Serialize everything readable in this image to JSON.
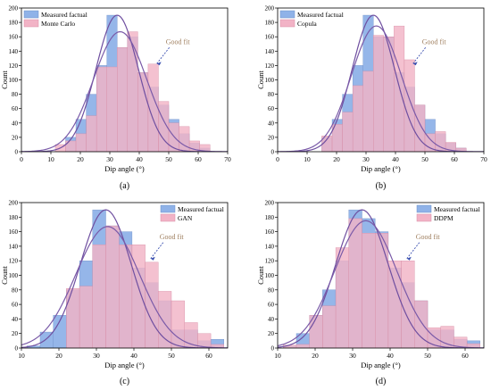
{
  "chart_data": [
    {
      "type": "bar",
      "panel_label": "(a)",
      "xlabel": "Dip angle (°)",
      "ylabel": "Count",
      "xlim": [
        0,
        70
      ],
      "ylim": [
        0,
        200
      ],
      "xticks": [
        0,
        10,
        20,
        30,
        40,
        50,
        60,
        70
      ],
      "yticks": [
        0,
        20,
        40,
        60,
        80,
        100,
        120,
        140,
        160,
        180,
        200
      ],
      "bin_width": 3.5,
      "legend": "top-left",
      "annotation": "Good fit",
      "series": [
        {
          "name": "Measured factual",
          "color": "#8fb2e8",
          "bins": [
            [
              15,
              20
            ],
            [
              18.5,
              45
            ],
            [
              22,
              80
            ],
            [
              25.5,
              120
            ],
            [
              29,
              190
            ],
            [
              32.5,
              145
            ],
            [
              36,
              160
            ],
            [
              39.5,
              110
            ],
            [
              43,
              90
            ],
            [
              46.5,
              65
            ],
            [
              50,
              45
            ],
            [
              53.5,
              25
            ],
            [
              57,
              12
            ],
            [
              60.5,
              5
            ]
          ]
        },
        {
          "name": "Monte Carlo",
          "color": "#f2b3c6",
          "bins": [
            [
              11.5,
              10
            ],
            [
              15,
              15
            ],
            [
              18.5,
              25
            ],
            [
              22,
              50
            ],
            [
              25.5,
              118
            ],
            [
              29,
              118
            ],
            [
              32.5,
              145
            ],
            [
              36,
              167
            ],
            [
              39.5,
              110
            ],
            [
              43,
              122
            ],
            [
              46.5,
              70
            ],
            [
              50,
              40
            ],
            [
              53.5,
              35
            ],
            [
              57,
              15
            ],
            [
              60.5,
              10
            ]
          ]
        }
      ],
      "curves": [
        {
          "peak_x": 32.5,
          "peak_y": 190,
          "sigma": 7.2,
          "color": "#6f4fa0"
        },
        {
          "peak_x": 33.5,
          "peak_y": 167,
          "sigma": 9,
          "color": "#7a5aa8"
        }
      ]
    },
    {
      "type": "bar",
      "panel_label": "(b)",
      "xlabel": "Dip angle (°)",
      "ylabel": "Count",
      "xlim": [
        0,
        70
      ],
      "ylim": [
        0,
        200
      ],
      "xticks": [
        0,
        10,
        20,
        30,
        40,
        50,
        60,
        70
      ],
      "yticks": [
        0,
        20,
        40,
        60,
        80,
        100,
        120,
        140,
        160,
        180,
        200
      ],
      "bin_width": 3.5,
      "legend": "top-left",
      "annotation": "Good fit",
      "series": [
        {
          "name": "Measured factual",
          "color": "#8fb2e8",
          "bins": [
            [
              15,
              20
            ],
            [
              18.5,
              45
            ],
            [
              22,
              80
            ],
            [
              25.5,
              120
            ],
            [
              29,
              190
            ],
            [
              32.5,
              160
            ],
            [
              36,
              160
            ],
            [
              39.5,
              110
            ],
            [
              43,
              90
            ],
            [
              46.5,
              65
            ],
            [
              50,
              45
            ],
            [
              53.5,
              25
            ],
            [
              57,
              12
            ],
            [
              60.5,
              5
            ]
          ]
        },
        {
          "name": "Copula",
          "color": "#f2b3c6",
          "bins": [
            [
              15,
              22
            ],
            [
              18.5,
              38
            ],
            [
              22,
              55
            ],
            [
              25.5,
              92
            ],
            [
              29,
              112
            ],
            [
              32.5,
              162
            ],
            [
              36,
              160
            ],
            [
              39.5,
              175
            ],
            [
              43,
              128
            ],
            [
              46.5,
              65
            ],
            [
              50,
              25
            ],
            [
              53.5,
              28
            ],
            [
              57,
              13
            ],
            [
              60.5,
              5
            ]
          ]
        }
      ],
      "curves": [
        {
          "peak_x": 32.5,
          "peak_y": 190,
          "sigma": 7.2,
          "color": "#6f4fa0"
        },
        {
          "peak_x": 33.5,
          "peak_y": 175,
          "sigma": 8.5,
          "color": "#7a5aa8"
        }
      ]
    },
    {
      "type": "bar",
      "panel_label": "(c)",
      "xlabel": "Dip angle (°)",
      "ylabel": "Count",
      "xlim": [
        10,
        65
      ],
      "ylim": [
        0,
        200
      ],
      "xticks": [
        10,
        20,
        30,
        40,
        50,
        60
      ],
      "yticks": [
        0,
        20,
        40,
        60,
        80,
        100,
        120,
        140,
        160,
        180,
        200
      ],
      "bin_width": 3.5,
      "legend": "top-right",
      "annotation": "Good fit",
      "series": [
        {
          "name": "Measured factual",
          "color": "#8fb2e8",
          "bins": [
            [
              11.5,
              3
            ],
            [
              15,
              22
            ],
            [
              18.5,
              45
            ],
            [
              22,
              80
            ],
            [
              25.5,
              120
            ],
            [
              29,
              190
            ],
            [
              32.5,
              168
            ],
            [
              36,
              160
            ],
            [
              39.5,
              110
            ],
            [
              43,
              90
            ],
            [
              46.5,
              65
            ],
            [
              50,
              25
            ],
            [
              53.5,
              25
            ],
            [
              57,
              10
            ],
            [
              60.5,
              12
            ]
          ]
        },
        {
          "name": "GAN",
          "color": "#f2b3c6",
          "bins": [
            [
              22,
              82
            ],
            [
              25.5,
              85
            ],
            [
              29,
              142
            ],
            [
              32.5,
              168
            ],
            [
              36,
              142
            ],
            [
              39.5,
              142
            ],
            [
              43,
              118
            ],
            [
              46.5,
              78
            ],
            [
              50,
              65
            ],
            [
              53.5,
              35
            ],
            [
              57,
              20
            ],
            [
              60.5,
              5
            ]
          ]
        }
      ],
      "curves": [
        {
          "peak_x": 32.5,
          "peak_y": 190,
          "sigma": 6.8,
          "color": "#6f4fa0"
        },
        {
          "peak_x": 33,
          "peak_y": 167,
          "sigma": 8.5,
          "color": "#7a5aa8"
        }
      ]
    },
    {
      "type": "bar",
      "panel_label": "(d)",
      "xlabel": "Dip angle (°)",
      "ylabel": "Count",
      "xlim": [
        10,
        65
      ],
      "ylim": [
        0,
        200
      ],
      "xticks": [
        10,
        20,
        30,
        40,
        50,
        60
      ],
      "yticks": [
        0,
        20,
        40,
        60,
        80,
        100,
        120,
        140,
        160,
        180,
        200
      ],
      "bin_width": 3.5,
      "legend": "top-right",
      "annotation": "Good fit",
      "series": [
        {
          "name": "Measured factual",
          "color": "#8fb2e8",
          "bins": [
            [
              11.5,
              3
            ],
            [
              15,
              20
            ],
            [
              18.5,
              45
            ],
            [
              22,
              80
            ],
            [
              25.5,
              120
            ],
            [
              29,
              190
            ],
            [
              32.5,
              178
            ],
            [
              36,
              160
            ],
            [
              39.5,
              110
            ],
            [
              43,
              90
            ],
            [
              46.5,
              65
            ],
            [
              50,
              25
            ],
            [
              53.5,
              25
            ],
            [
              57,
              12
            ],
            [
              60.5,
              10
            ]
          ]
        },
        {
          "name": "DDPM",
          "color": "#f2b3c6",
          "bins": [
            [
              11.5,
              4
            ],
            [
              15,
              5
            ],
            [
              18.5,
              45
            ],
            [
              22,
              58
            ],
            [
              25.5,
              138
            ],
            [
              29,
              178
            ],
            [
              32.5,
              158
            ],
            [
              36,
              158
            ],
            [
              39.5,
              120
            ],
            [
              43,
              120
            ],
            [
              46.5,
              65
            ],
            [
              50,
              28
            ],
            [
              53.5,
              30
            ],
            [
              57,
              15
            ],
            [
              60.5,
              6
            ]
          ]
        }
      ],
      "curves": [
        {
          "peak_x": 32.5,
          "peak_y": 190,
          "sigma": 7,
          "color": "#6f4fa0"
        },
        {
          "peak_x": 33.5,
          "peak_y": 175,
          "sigma": 8.3,
          "color": "#7a5aa8"
        }
      ]
    }
  ]
}
